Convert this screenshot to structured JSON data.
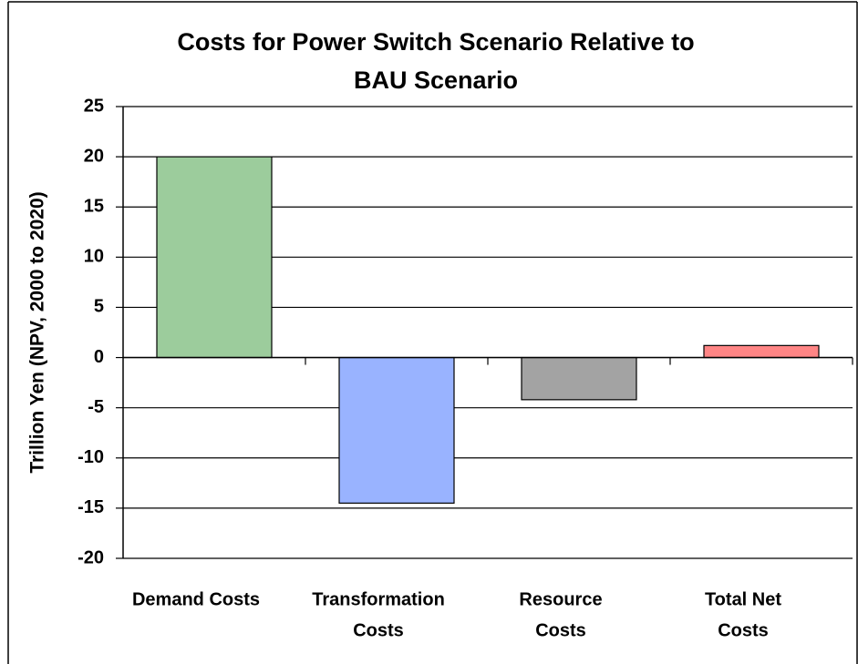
{
  "chart_data": {
    "type": "bar",
    "title": [
      "Costs for Power Switch Scenario Relative to",
      "BAU Scenario"
    ],
    "ylabel": "Trillion Yen (NPV, 2000 to 2020)",
    "categories": [
      [
        "Demand Costs"
      ],
      [
        "Transformation",
        "Costs"
      ],
      [
        "Resource",
        "Costs"
      ],
      [
        "Total Net",
        "Costs"
      ]
    ],
    "values": [
      20,
      -14.5,
      -4.2,
      1.2
    ],
    "colors": [
      "#9ccc9c",
      "#99b3ff",
      "#a3a3a3",
      "#ff8585"
    ],
    "ylim": [
      -20,
      25
    ],
    "yticks": [
      -20,
      -15,
      -10,
      -5,
      0,
      5,
      10,
      15,
      20,
      25
    ],
    "grid": true
  }
}
